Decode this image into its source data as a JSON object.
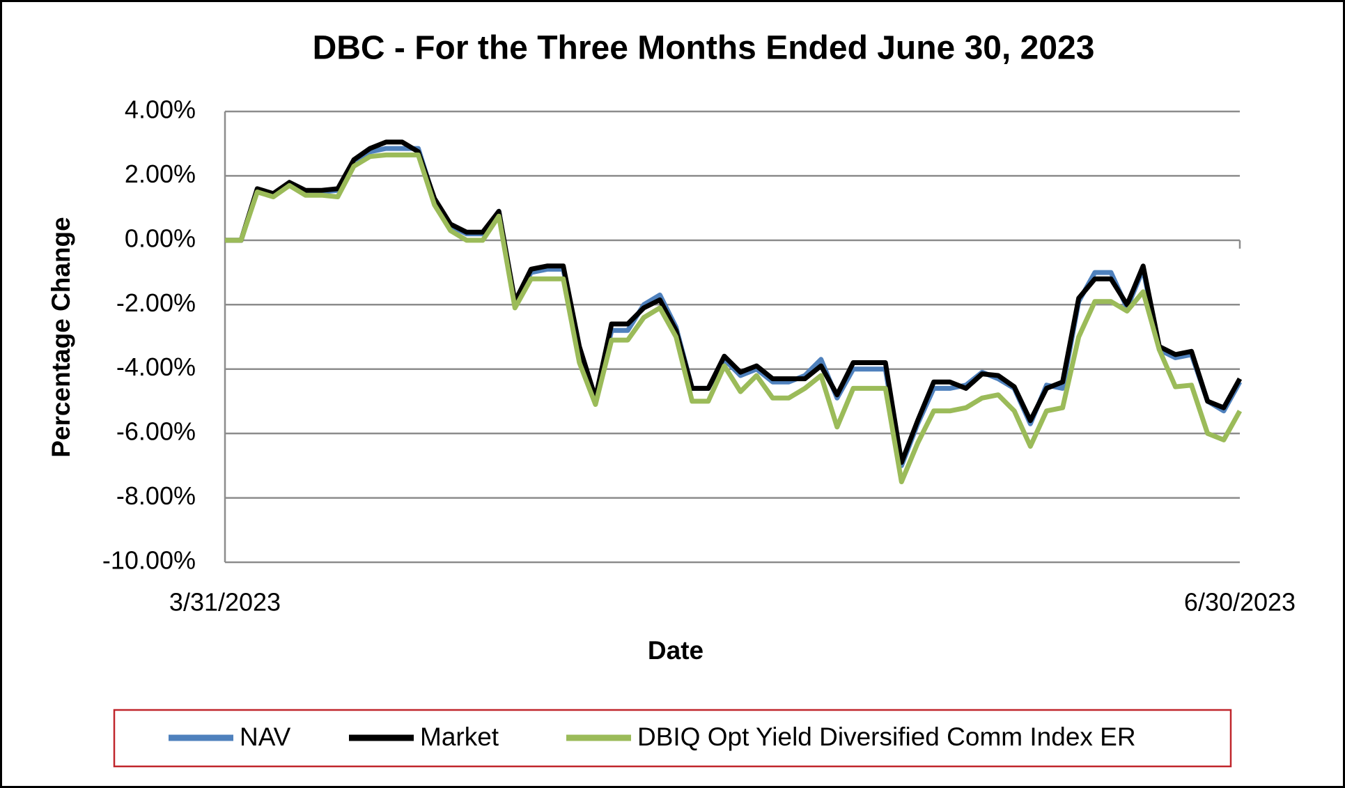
{
  "chart_data": {
    "type": "line",
    "title": "DBC - For the Three Months Ended June 30, 2023",
    "xlabel": "Date",
    "ylabel": "Percentage Change",
    "categories": [
      "3/31/2023",
      null,
      null,
      null,
      null,
      null,
      null,
      null,
      null,
      null,
      null,
      null,
      null,
      null,
      null,
      null,
      null,
      null,
      null,
      null,
      null,
      null,
      null,
      null,
      null,
      null,
      null,
      null,
      null,
      null,
      null,
      null,
      null,
      null,
      null,
      null,
      null,
      null,
      null,
      null,
      null,
      null,
      null,
      null,
      null,
      null,
      null,
      null,
      null,
      null,
      null,
      null,
      null,
      null,
      null,
      null,
      null,
      null,
      null,
      null,
      null,
      null,
      null,
      "6/30/2023"
    ],
    "series": [
      {
        "name": "NAV",
        "color": "#4f81bd",
        "values": [
          0,
          0,
          1.55,
          1.4,
          1.75,
          1.5,
          1.5,
          1.55,
          2.4,
          2.75,
          2.85,
          2.85,
          2.85,
          1.25,
          0.45,
          0.2,
          0.2,
          0.9,
          -2.0,
          -1.0,
          -0.9,
          -0.9,
          -3.4,
          -5.0,
          -2.8,
          -2.8,
          -2.0,
          -1.7,
          -2.7,
          -4.6,
          -4.6,
          -3.7,
          -4.2,
          -4.0,
          -4.4,
          -4.4,
          -4.2,
          -3.7,
          -4.9,
          -4.0,
          -4.0,
          -4.0,
          -7.0,
          -5.7,
          -4.6,
          -4.6,
          -4.5,
          -4.1,
          -4.3,
          -4.6,
          -5.7,
          -4.5,
          -4.6,
          -1.9,
          -1.0,
          -1.0,
          -2.1,
          -0.9,
          -3.4,
          -3.65,
          -3.55,
          -5.0,
          -5.3,
          -4.4
        ]
      },
      {
        "name": "Market",
        "color": "#000000",
        "values": [
          0,
          0,
          1.6,
          1.45,
          1.8,
          1.55,
          1.55,
          1.6,
          2.5,
          2.85,
          3.05,
          3.05,
          2.75,
          1.3,
          0.5,
          0.25,
          0.25,
          0.9,
          -1.9,
          -0.9,
          -0.8,
          -0.8,
          -3.3,
          -4.9,
          -2.6,
          -2.6,
          -2.1,
          -1.85,
          -2.8,
          -4.6,
          -4.6,
          -3.6,
          -4.1,
          -3.9,
          -4.3,
          -4.3,
          -4.3,
          -3.9,
          -4.8,
          -3.8,
          -3.8,
          -3.8,
          -6.9,
          -5.6,
          -4.4,
          -4.4,
          -4.6,
          -4.15,
          -4.2,
          -4.55,
          -5.6,
          -4.6,
          -4.4,
          -1.8,
          -1.2,
          -1.2,
          -2.0,
          -0.8,
          -3.3,
          -3.55,
          -3.45,
          -5.0,
          -5.2,
          -4.3
        ]
      },
      {
        "name": "DBIQ Opt Yield Diversified Comm Index ER",
        "color": "#9bbb59",
        "values": [
          0,
          0,
          1.5,
          1.35,
          1.7,
          1.4,
          1.4,
          1.35,
          2.3,
          2.6,
          2.65,
          2.65,
          2.65,
          1.1,
          0.3,
          0,
          0,
          0.75,
          -2.1,
          -1.2,
          -1.2,
          -1.2,
          -3.8,
          -5.1,
          -3.1,
          -3.1,
          -2.4,
          -2.1,
          -3.0,
          -5.0,
          -5.0,
          -3.9,
          -4.7,
          -4.2,
          -4.9,
          -4.9,
          -4.6,
          -4.2,
          -5.8,
          -4.6,
          -4.6,
          -4.6,
          -7.5,
          -6.3,
          -5.3,
          -5.3,
          -5.2,
          -4.9,
          -4.8,
          -5.3,
          -6.4,
          -5.3,
          -5.2,
          -3.0,
          -1.9,
          -1.9,
          -2.2,
          -1.6,
          -3.4,
          -4.55,
          -4.5,
          -6.0,
          -6.2,
          -5.3
        ]
      }
    ],
    "ylim": [
      -10,
      4
    ],
    "yticks": [
      {
        "value": -10,
        "label": "-10.00%"
      },
      {
        "value": -8,
        "label": "-8.00%"
      },
      {
        "value": -6,
        "label": "-6.00%"
      },
      {
        "value": -4,
        "label": "-4.00%"
      },
      {
        "value": -2,
        "label": "-2.00%"
      },
      {
        "value": 0,
        "label": "0.00%"
      },
      {
        "value": 2,
        "label": "2.00%"
      },
      {
        "value": 4,
        "label": "4.00%"
      }
    ],
    "grid": true
  }
}
